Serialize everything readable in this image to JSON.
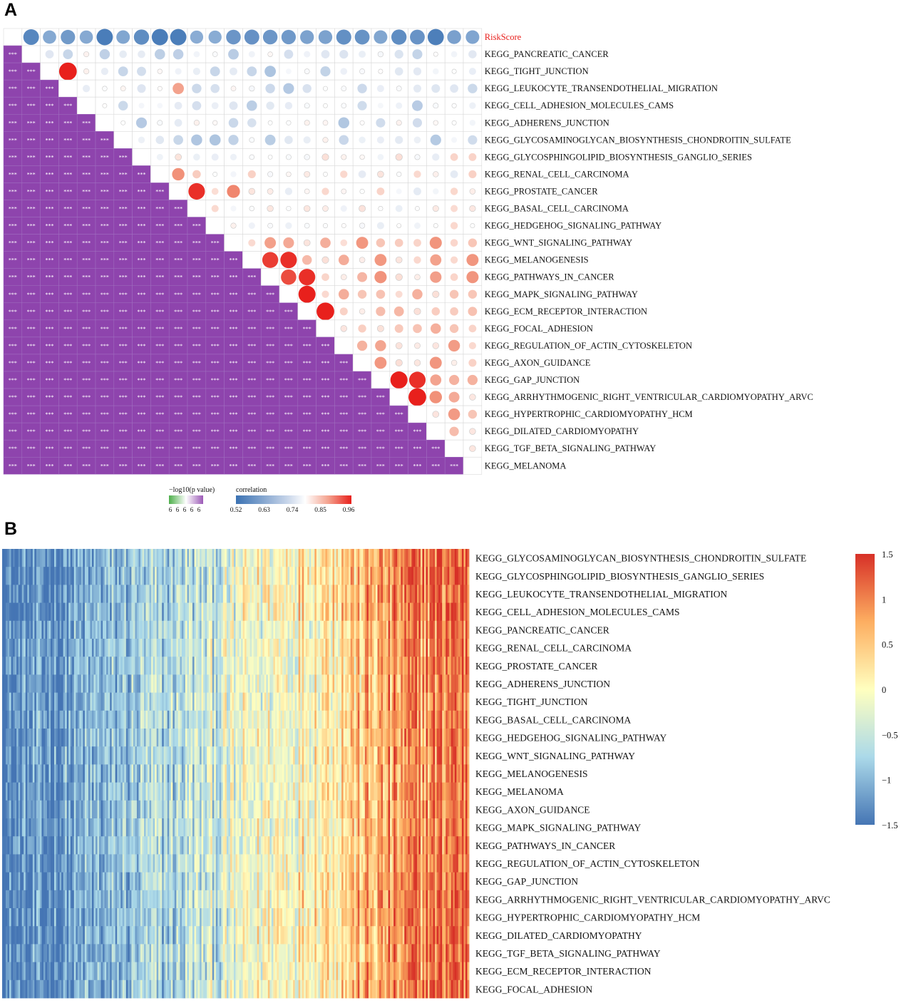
{
  "panel_a_letter": "A",
  "panel_b_letter": "B",
  "chart_data": [
    {
      "type": "heatmap",
      "subtype": "correlation-matrix",
      "variables": [
        "RiskScore",
        "KEGG_PANCREATIC_CANCER",
        "KEGG_TIGHT_JUNCTION",
        "KEGG_LEUKOCYTE_TRANSENDOTHELIAL_MIGRATION",
        "KEGG_CELL_ADHESION_MOLECULES_CAMS",
        "KEGG_ADHERENS_JUNCTION",
        "KEGG_GLYCOSAMINOGLYCAN_BIOSYNTHESIS_CHONDROITIN_SULFATE",
        "KEGG_GLYCOSPHINGOLIPID_BIOSYNTHESIS_GANGLIO_SERIES",
        "KEGG_RENAL_CELL_CARCINOMA",
        "KEGG_PROSTATE_CANCER",
        "KEGG_BASAL_CELL_CARCINOMA",
        "KEGG_HEDGEHOG_SIGNALING_PATHWAY",
        "KEGG_WNT_SIGNALING_PATHWAY",
        "KEGG_MELANOGENESIS",
        "KEGG_PATHWAYS_IN_CANCER",
        "KEGG_MAPK_SIGNALING_PATHWAY",
        "KEGG_ECM_RECEPTOR_INTERACTION",
        "KEGG_FOCAL_ADHESION",
        "KEGG_REGULATION_OF_ACTIN_CYTOSKELETON",
        "KEGG_AXON_GUIDANCE",
        "KEGG_GAP_JUNCTION",
        "KEGG_ARRHYTHMOGENIC_RIGHT_VENTRICULAR_CARDIOMYOPATHY_ARVC",
        "KEGG_HYPERTROPHIC_CARDIOMYOPATHY_HCM",
        "KEGG_DILATED_CARDIOMYOPATHY",
        "KEGG_TGF_BETA_SIGNALING_PATHWAY",
        "KEGG_MELANOMA"
      ],
      "highlight_variable": "RiskScore",
      "highlight_color": "#e8201c",
      "lower_triangle_label": "***",
      "lower_triangle_color": "#8e44ad",
      "upper_triangle_encoding": "circle size and color = correlation",
      "legend_pvalue": {
        "title": "−log10(p value)",
        "ticks": [
          "6",
          "6",
          "6",
          "6",
          "6"
        ],
        "colors": [
          "#4daf4a",
          "#ffffff",
          "#9b59b6"
        ]
      },
      "legend_correlation": {
        "title": "correlation",
        "ticks": [
          0.52,
          0.63,
          0.74,
          0.85,
          0.96
        ],
        "range": [
          0.52,
          0.96
        ],
        "colors": [
          "#3b72b3",
          "#ffffff",
          "#e8201c"
        ]
      },
      "strong_pairs": [
        [
          2,
          3,
          0.97
        ],
        [
          9,
          10,
          0.95
        ],
        [
          13,
          14,
          0.94
        ],
        [
          13,
          15,
          0.95
        ],
        [
          14,
          15,
          0.93
        ],
        [
          15,
          16,
          0.96
        ],
        [
          14,
          16,
          0.95
        ],
        [
          16,
          17,
          0.97
        ],
        [
          20,
          21,
          0.96
        ],
        [
          20,
          22,
          0.95
        ],
        [
          21,
          22,
          0.97
        ],
        [
          3,
          9,
          0.86
        ],
        [
          9,
          12,
          0.89
        ],
        [
          8,
          9,
          0.88
        ]
      ]
    },
    {
      "type": "heatmap",
      "subtype": "expression-heatmap",
      "rows": [
        "KEGG_GLYCOSAMINOGLYCAN_BIOSYNTHESIS_CHONDROITIN_SULFATE",
        "KEGG_GLYCOSPHINGOLIPID_BIOSYNTHESIS_GANGLIO_SERIES",
        "KEGG_LEUKOCYTE_TRANSENDOTHELIAL_MIGRATION",
        "KEGG_CELL_ADHESION_MOLECULES_CAMS",
        "KEGG_PANCREATIC_CANCER",
        "KEGG_RENAL_CELL_CARCINOMA",
        "KEGG_PROSTATE_CANCER",
        "KEGG_ADHERENS_JUNCTION",
        "KEGG_TIGHT_JUNCTION",
        "KEGG_BASAL_CELL_CARCINOMA",
        "KEGG_HEDGEHOG_SIGNALING_PATHWAY",
        "KEGG_WNT_SIGNALING_PATHWAY",
        "KEGG_MELANOGENESIS",
        "KEGG_MELANOMA",
        "KEGG_AXON_GUIDANCE",
        "KEGG_MAPK_SIGNALING_PATHWAY",
        "KEGG_PATHWAYS_IN_CANCER",
        "KEGG_REGULATION_OF_ACTIN_CYTOSKELETON",
        "KEGG_GAP_JUNCTION",
        "KEGG_ARRHYTHMOGENIC_RIGHT_VENTRICULAR_CARDIOMYOPATHY_ARVC",
        "KEGG_HYPERTROPHIC_CARDIOMYOPATHY_HCM",
        "KEGG_DILATED_CARDIOMYOPATHY",
        "KEGG_TGF_BETA_SIGNALING_PATHWAY",
        "KEGG_ECM_RECEPTOR_INTERACTION",
        "KEGG_FOCAL_ADHESION"
      ],
      "columns_sorted_by": "RiskScore (ascending)",
      "trend": "z-scores increase from left (low, blue) to right (high, red)",
      "color_scale": {
        "min": -1.5,
        "max": 1.5,
        "ticks": [
          "1.5",
          "1",
          "0.5",
          "0",
          "−0.5",
          "−1",
          "−1.5"
        ],
        "colors": [
          "#4575b4",
          "#abd9e9",
          "#ffffbf",
          "#fdae61",
          "#d73027"
        ]
      }
    }
  ]
}
